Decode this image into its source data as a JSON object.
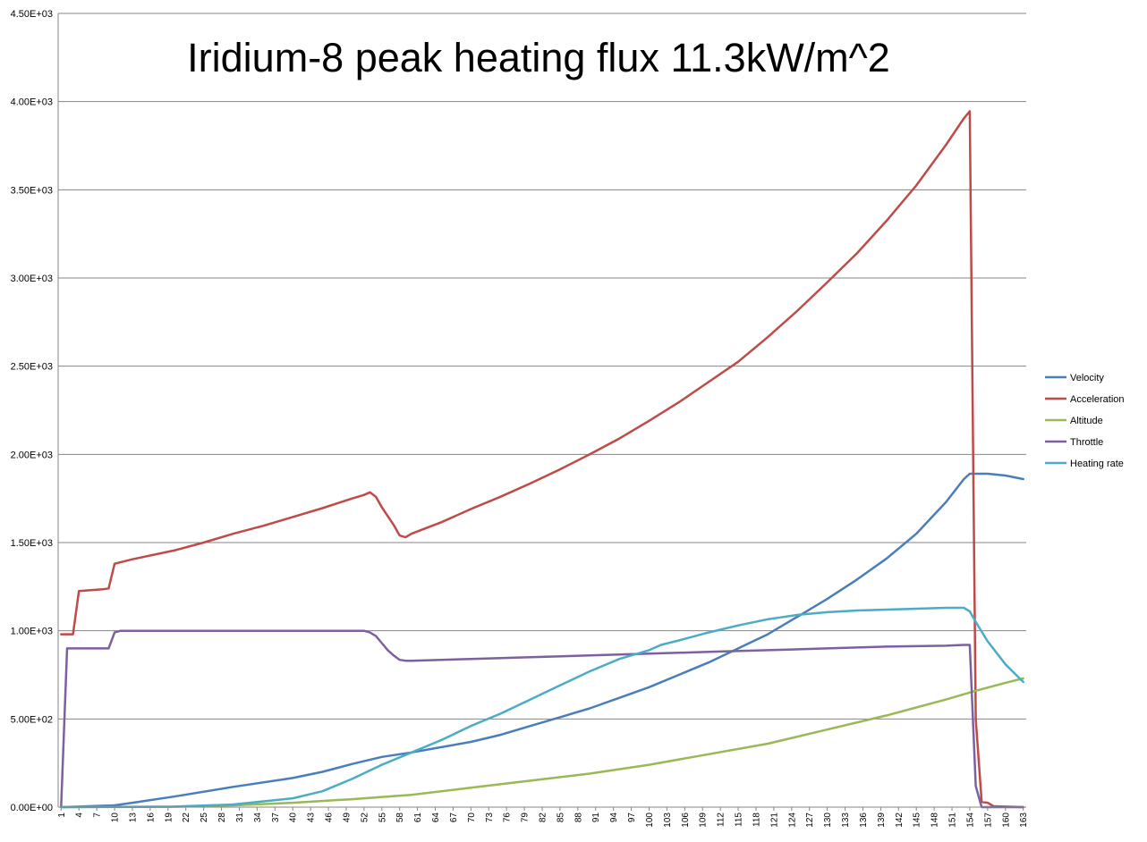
{
  "chart_data": {
    "type": "line",
    "title": "Iridium-8 peak heating flux 11.3kW/m^2",
    "xlabel": "",
    "ylabel": "",
    "x_range": [
      1,
      163
    ],
    "x_tick_labels": [
      "1",
      "4",
      "7",
      "10",
      "13",
      "16",
      "19",
      "22",
      "25",
      "28",
      "31",
      "34",
      "37",
      "40",
      "43",
      "46",
      "49",
      "52",
      "55",
      "58",
      "61",
      "64",
      "67",
      "70",
      "73",
      "76",
      "79",
      "82",
      "85",
      "88",
      "91",
      "94",
      "97",
      "100",
      "103",
      "106",
      "109",
      "112",
      "115",
      "118",
      "121",
      "124",
      "127",
      "130",
      "133",
      "136",
      "139",
      "142",
      "145",
      "148",
      "151",
      "154",
      "157",
      "160",
      "163"
    ],
    "ylim": [
      0,
      4500
    ],
    "y_ticks": [
      0,
      500,
      1000,
      1500,
      2000,
      2500,
      3000,
      3500,
      4000,
      4500
    ],
    "y_tick_labels": [
      "0.00E+00",
      "5.00E+02",
      "1.00E+03",
      "1.50E+03",
      "2.00E+03",
      "2.50E+03",
      "3.00E+03",
      "3.50E+03",
      "4.00E+03",
      "4.50E+03"
    ],
    "grid": true,
    "legend_position": "right",
    "series": [
      {
        "name": "Velocity",
        "color": "#4A7EBB",
        "points": [
          [
            1,
            0
          ],
          [
            10,
            10
          ],
          [
            13,
            25
          ],
          [
            20,
            60
          ],
          [
            30,
            115
          ],
          [
            40,
            165
          ],
          [
            45,
            200
          ],
          [
            50,
            245
          ],
          [
            55,
            285
          ],
          [
            60,
            310
          ],
          [
            65,
            340
          ],
          [
            70,
            370
          ],
          [
            75,
            410
          ],
          [
            80,
            460
          ],
          [
            85,
            510
          ],
          [
            90,
            560
          ],
          [
            95,
            620
          ],
          [
            100,
            680
          ],
          [
            105,
            750
          ],
          [
            110,
            820
          ],
          [
            115,
            900
          ],
          [
            120,
            980
          ],
          [
            125,
            1080
          ],
          [
            130,
            1180
          ],
          [
            135,
            1290
          ],
          [
            140,
            1410
          ],
          [
            145,
            1550
          ],
          [
            150,
            1730
          ],
          [
            153,
            1860
          ],
          [
            154,
            1890
          ],
          [
            157,
            1890
          ],
          [
            160,
            1880
          ],
          [
            163,
            1860
          ]
        ]
      },
      {
        "name": "Acceleration",
        "color": "#BE4B48",
        "points": [
          [
            1,
            980
          ],
          [
            3,
            980
          ],
          [
            4,
            1225
          ],
          [
            6,
            1230
          ],
          [
            8,
            1235
          ],
          [
            9,
            1240
          ],
          [
            10,
            1380
          ],
          [
            13,
            1405
          ],
          [
            20,
            1455
          ],
          [
            25,
            1500
          ],
          [
            30,
            1550
          ],
          [
            35,
            1595
          ],
          [
            40,
            1645
          ],
          [
            45,
            1695
          ],
          [
            50,
            1750
          ],
          [
            52,
            1770
          ],
          [
            53,
            1785
          ],
          [
            54,
            1760
          ],
          [
            55,
            1700
          ],
          [
            57,
            1600
          ],
          [
            58,
            1540
          ],
          [
            59,
            1530
          ],
          [
            60,
            1550
          ],
          [
            65,
            1615
          ],
          [
            70,
            1690
          ],
          [
            75,
            1760
          ],
          [
            80,
            1835
          ],
          [
            85,
            1915
          ],
          [
            90,
            2000
          ],
          [
            95,
            2090
          ],
          [
            100,
            2190
          ],
          [
            105,
            2295
          ],
          [
            110,
            2410
          ],
          [
            115,
            2525
          ],
          [
            120,
            2665
          ],
          [
            125,
            2815
          ],
          [
            130,
            2975
          ],
          [
            135,
            3140
          ],
          [
            140,
            3325
          ],
          [
            145,
            3525
          ],
          [
            150,
            3755
          ],
          [
            153,
            3905
          ],
          [
            154,
            3945
          ],
          [
            155,
            500
          ],
          [
            156,
            30
          ],
          [
            157,
            25
          ],
          [
            158,
            5
          ],
          [
            163,
            0
          ]
        ]
      },
      {
        "name": "Altitude",
        "color": "#98B954",
        "points": [
          [
            1,
            0
          ],
          [
            20,
            2
          ],
          [
            30,
            10
          ],
          [
            40,
            25
          ],
          [
            50,
            45
          ],
          [
            60,
            70
          ],
          [
            70,
            110
          ],
          [
            80,
            150
          ],
          [
            90,
            190
          ],
          [
            100,
            240
          ],
          [
            110,
            300
          ],
          [
            120,
            360
          ],
          [
            130,
            440
          ],
          [
            140,
            520
          ],
          [
            150,
            610
          ],
          [
            155,
            660
          ],
          [
            160,
            705
          ],
          [
            163,
            730
          ]
        ]
      },
      {
        "name": "Throttle",
        "color": "#7D60A0",
        "points": [
          [
            1,
            0
          ],
          [
            2,
            900
          ],
          [
            4,
            900
          ],
          [
            9,
            900
          ],
          [
            10,
            990
          ],
          [
            11,
            1000
          ],
          [
            52,
            1000
          ],
          [
            53,
            990
          ],
          [
            54,
            970
          ],
          [
            55,
            930
          ],
          [
            56,
            890
          ],
          [
            57,
            860
          ],
          [
            58,
            835
          ],
          [
            59,
            830
          ],
          [
            60,
            830
          ],
          [
            70,
            840
          ],
          [
            80,
            850
          ],
          [
            90,
            860
          ],
          [
            100,
            870
          ],
          [
            110,
            880
          ],
          [
            120,
            890
          ],
          [
            130,
            900
          ],
          [
            140,
            910
          ],
          [
            150,
            915
          ],
          [
            153,
            920
          ],
          [
            154,
            920
          ],
          [
            155,
            120
          ],
          [
            156,
            0
          ],
          [
            163,
            0
          ]
        ]
      },
      {
        "name": "Heating rate",
        "color": "#4BACC6",
        "points": [
          [
            1,
            0
          ],
          [
            20,
            3
          ],
          [
            30,
            15
          ],
          [
            40,
            50
          ],
          [
            45,
            90
          ],
          [
            50,
            160
          ],
          [
            55,
            240
          ],
          [
            60,
            310
          ],
          [
            65,
            380
          ],
          [
            70,
            460
          ],
          [
            75,
            530
          ],
          [
            80,
            610
          ],
          [
            85,
            690
          ],
          [
            90,
            770
          ],
          [
            95,
            840
          ],
          [
            100,
            890
          ],
          [
            102,
            920
          ],
          [
            105,
            945
          ],
          [
            110,
            990
          ],
          [
            115,
            1030
          ],
          [
            120,
            1065
          ],
          [
            125,
            1090
          ],
          [
            130,
            1105
          ],
          [
            135,
            1115
          ],
          [
            140,
            1120
          ],
          [
            145,
            1125
          ],
          [
            150,
            1130
          ],
          [
            153,
            1130
          ],
          [
            154,
            1110
          ],
          [
            155,
            1050
          ],
          [
            157,
            940
          ],
          [
            160,
            810
          ],
          [
            163,
            710
          ]
        ]
      }
    ]
  }
}
